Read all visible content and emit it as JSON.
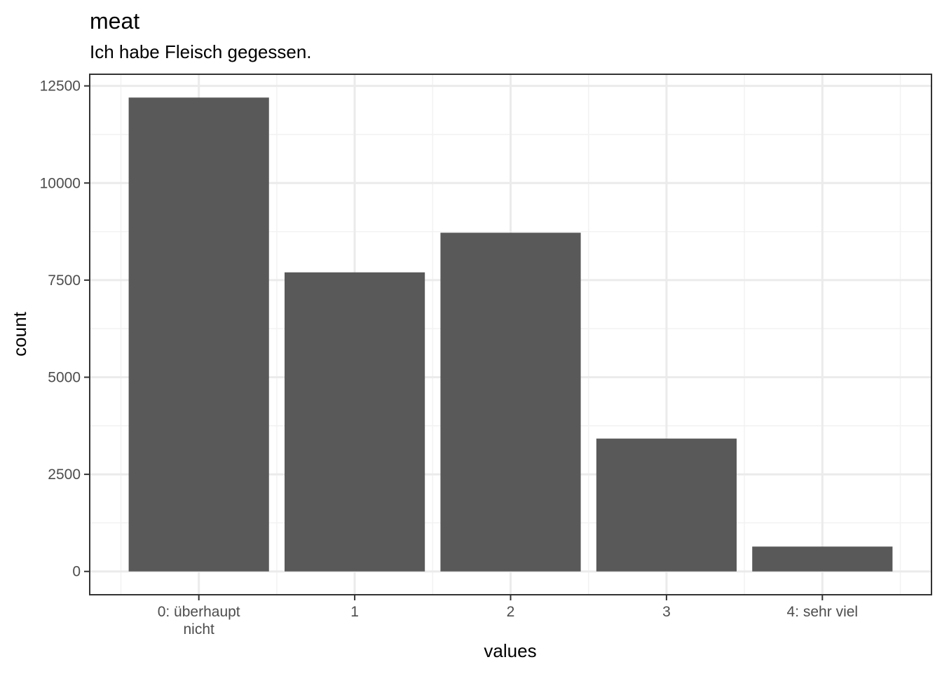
{
  "chart_data": {
    "type": "bar",
    "title": "meat",
    "subtitle": "Ich habe Fleisch gegessen.",
    "xlabel": "values",
    "ylabel": "count",
    "categories": [
      "0: überhaupt\nnicht",
      "1",
      "2",
      "3",
      "4: sehr viel"
    ],
    "values": [
      12200,
      7700,
      8720,
      3420,
      640
    ],
    "ylim": [
      -600,
      12800
    ],
    "yticks": [
      0,
      2500,
      5000,
      7500,
      10000,
      12500
    ],
    "ytick_labels": [
      "0",
      "2500",
      "5000",
      "7500",
      "10000",
      "12500"
    ],
    "grid": true,
    "legend": "none",
    "colors": {
      "bar": "#595959",
      "grid_major": "#ebebeb",
      "grid_minor": "#f2f2f2",
      "panel_border": "#333333",
      "tick_label": "#4d4d4d"
    }
  }
}
